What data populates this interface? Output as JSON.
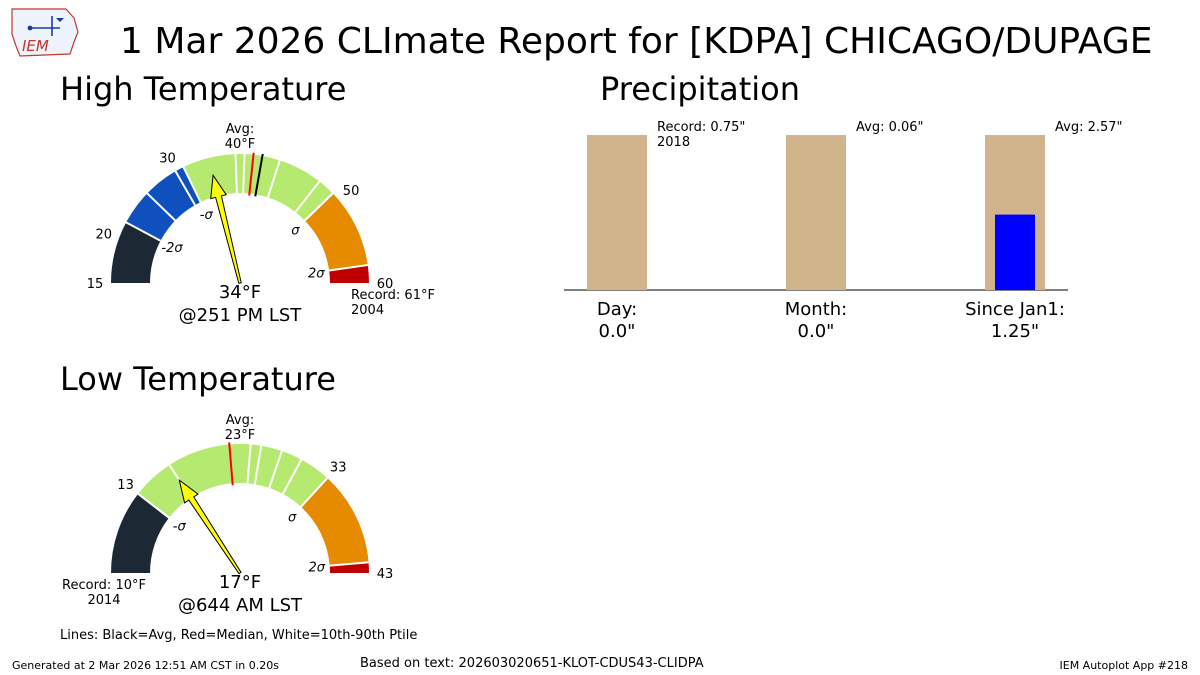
{
  "title": "1 Mar 2026 CLImate Report for [KDPA] CHICAGO/DUPAGE",
  "logo_text": "IEM",
  "colors": {
    "below2sd": "#1c2833",
    "below1sd": "#0f4fbe",
    "normal": "#b5e96f",
    "above1sd": "#e68a00",
    "above2sd": "#c00000",
    "needle": "#ffff00",
    "bar_avg": "#d2b48c",
    "bar_obs": "#0000ff",
    "median_line": "#ff0000",
    "avg_line": "#000000"
  },
  "chart_data": [
    {
      "type": "gauge",
      "title": "High Temperature",
      "range": [
        15,
        60
      ],
      "observed": 34,
      "observed_label": "34°F",
      "observed_time": "@251 PM LST",
      "avg": 40,
      "avg_label": "Avg:\n40°F",
      "median": 39,
      "percentile_lines": [
        26,
        30,
        37,
        38,
        42,
        47,
        49
      ],
      "sigma_marks": [
        {
          "label": "-2σ",
          "value": 22
        },
        {
          "label": "-σ",
          "value": 31
        },
        {
          "label": "σ",
          "value": 49
        },
        {
          "label": "2σ",
          "value": 58
        }
      ],
      "ticks": [
        15,
        20,
        30,
        50,
        60
      ],
      "record": 61,
      "record_label": "Record: 61°F",
      "record_year": "2004"
    },
    {
      "type": "gauge",
      "title": "Low Temperature",
      "range": [
        5,
        43
      ],
      "observed": 17,
      "observed_label": "17°F",
      "observed_time": "@644 AM LST",
      "avg": 23,
      "median": 23,
      "avg_label": "Avg:\n23°F",
      "percentile_lines": [
        13,
        17,
        25,
        26,
        28,
        30
      ],
      "sigma_marks": [
        {
          "label": "-σ",
          "value": 13
        },
        {
          "label": "σ",
          "value": 33
        },
        {
          "label": "2σ",
          "value": 42
        }
      ],
      "ticks": [
        13,
        33,
        43
      ],
      "record": 10,
      "record_label": "Record: 10°F",
      "record_year": "2014"
    },
    {
      "type": "bar",
      "title": "Precipitation",
      "categories": [
        "Day:",
        "Month:",
        "Since Jan1:"
      ],
      "observed": [
        0.0,
        0.0,
        1.25
      ],
      "observed_labels": [
        "0.0\"",
        "0.0\"",
        "1.25\""
      ],
      "reference_labels": [
        "Record: 0.75\"\n2018",
        "Avg: 0.06\"",
        "Avg: 2.57\""
      ],
      "reference_values": [
        0.75,
        0.06,
        2.57
      ]
    }
  ],
  "notes": {
    "lines_legend": "Lines: Black=Avg, Red=Median, White=10th-90th Ptile",
    "generated": "Generated at 2 Mar 2026 12:51 AM CST in 0.20s",
    "based_on": "Based on text: 202603020651-KLOT-CDUS43-CLIDPA",
    "app_id": "IEM Autoplot App #218"
  }
}
